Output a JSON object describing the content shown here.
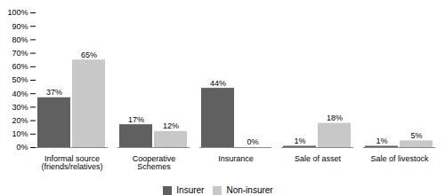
{
  "chart_data": {
    "type": "bar",
    "categories": [
      "Informal source\n(friends/relatives)",
      "Cooperative\nSchemes",
      "Insurance",
      "Sale of asset",
      "Sale of livestock"
    ],
    "series": [
      {
        "name": "Insurer",
        "color": "#606060",
        "values": [
          37,
          17,
          44,
          1,
          1
        ],
        "value_labels": [
          "37%",
          "17%",
          "44%",
          "1%",
          "1%"
        ]
      },
      {
        "name": "Non-insurer",
        "color": "#c8c8c8",
        "values": [
          65,
          12,
          0,
          18,
          5
        ],
        "value_labels": [
          "65%",
          "12%",
          "0%",
          "18%",
          "5%"
        ]
      }
    ],
    "ylim": [
      0,
      100
    ],
    "yticks": [
      {
        "value": 0,
        "label": "0%"
      },
      {
        "value": 10,
        "label": "10%"
      },
      {
        "value": 20,
        "label": "20%"
      },
      {
        "value": 30,
        "label": "30%"
      },
      {
        "value": 40,
        "label": "40%"
      },
      {
        "value": 50,
        "label": "50%"
      },
      {
        "value": 60,
        "label": "60%"
      },
      {
        "value": 70,
        "label": "70%"
      },
      {
        "value": 80,
        "label": "80%"
      },
      {
        "value": 90,
        "label": "90%"
      },
      {
        "value": 100,
        "label": "100%"
      }
    ],
    "grid": false,
    "legend": "bottom",
    "data_labels": true
  }
}
